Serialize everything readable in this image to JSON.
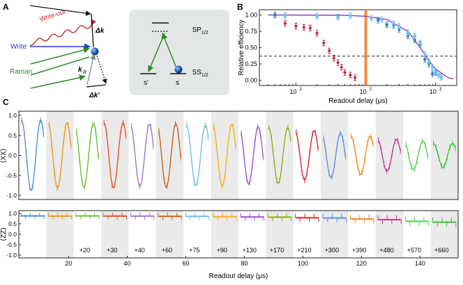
{
  "panel_labels": {
    "a": "A",
    "b": "B",
    "c": "C"
  },
  "panel_a": {
    "write_out": "Write-out",
    "write": "Write",
    "raman": "Raman",
    "delta_k": "Δk",
    "k_r": "k",
    "k_r_sub": "R",
    "delta_k_prime": "Δk'"
  },
  "level_diagram": {
    "upper_level": "5P",
    "upper_sub": "1/2",
    "lower_level": "5S",
    "lower_sub": "1/2",
    "state_s_prime": "s'",
    "state_s": "s"
  },
  "colors": {
    "dark_red": "#b5283a",
    "light_red": "#e07a80",
    "blue": "#2b7fd1",
    "light_blue": "#6cc0ea",
    "purple": "#8a3fc8",
    "orange": "#f0812a",
    "gray_band": "#eaeaea"
  },
  "chart_data": [
    {
      "panel": "B",
      "type": "scatter",
      "xscale": "log",
      "xlabel": "Readout delay (μs)",
      "ylabel": "Relative efficiency",
      "xlim": [
        3,
        2000
      ],
      "ylim": [
        -0.08,
        1.08
      ],
      "x_ticks": [
        "10",
        "10",
        "10"
      ],
      "x_tick_exponents": [
        "1",
        "2",
        "3"
      ],
      "y_ticks": [
        "0.00",
        "0.25",
        "0.50",
        "0.75",
        "1.00"
      ],
      "threshold": 0.37,
      "marker_x": 100,
      "series": [
        {
          "name": "red",
          "x": [
            5,
            7,
            10,
            13,
            16,
            20,
            25,
            30,
            35,
            40,
            45,
            50,
            60,
            70
          ],
          "y": [
            1.0,
            0.87,
            0.83,
            0.81,
            0.8,
            0.72,
            0.57,
            0.45,
            0.34,
            0.27,
            0.2,
            0.12,
            0.08,
            0.04
          ]
        },
        {
          "name": "blue",
          "x": [
            5,
            7,
            20,
            40,
            60,
            150,
            200,
            250,
            300,
            400,
            500,
            600,
            700,
            800,
            900,
            1000,
            1200
          ],
          "y": [
            1.0,
            0.99,
            0.98,
            0.97,
            0.99,
            0.92,
            0.85,
            0.84,
            0.78,
            0.68,
            0.62,
            0.55,
            0.32,
            0.25,
            0.1,
            0.12,
            0.05
          ]
        },
        {
          "name": "light blue",
          "x": [
            7,
            20,
            40,
            60,
            120,
            170,
            250,
            300,
            400,
            500,
            600,
            700,
            800,
            900,
            1000,
            1100,
            1200
          ],
          "y": [
            0.99,
            0.98,
            0.97,
            0.99,
            0.95,
            0.93,
            0.87,
            0.83,
            0.73,
            0.68,
            0.57,
            0.4,
            0.29,
            0.2,
            0.13,
            0.08,
            0.05
          ]
        },
        {
          "name": "fit (purple)",
          "x": [
            4,
            50,
            100,
            200,
            400,
            600,
            800,
            1000,
            1500,
            1800
          ],
          "y": [
            1.0,
            0.995,
            0.98,
            0.93,
            0.75,
            0.5,
            0.3,
            0.17,
            0.04,
            0.02
          ]
        }
      ]
    },
    {
      "panel": "C-top",
      "type": "line",
      "ylabel": "⟨XX⟩",
      "ylim": [
        -1.0,
        1.0
      ],
      "y_ticks": [
        "1.0",
        "0.5",
        "0.0",
        "-0.5",
        "-1.0"
      ],
      "description": "Sinusoidal oscillations of ⟨XX⟩ versus readout delay for 16 readout windows",
      "amplitudes": [
        0.88,
        0.82,
        0.8,
        0.82,
        0.78,
        0.8,
        0.76,
        0.78,
        0.72,
        0.7,
        0.62,
        0.56,
        0.48,
        0.4,
        0.36,
        0.3
      ]
    },
    {
      "panel": "C-bottom",
      "type": "line",
      "xlabel": "Readout delay (μs)",
      "ylabel": "⟨ZZ⟩",
      "ylim": [
        -1.0,
        1.0
      ],
      "y_ticks": [
        "1.0",
        "0.5",
        "0.0",
        "-0.5",
        "-1.0"
      ],
      "x_ticks": [
        "20",
        "40",
        "60",
        "80",
        "100",
        "120",
        "140"
      ],
      "window_offsets": [
        "+20",
        "+30",
        "+40",
        "+60",
        "+75",
        "+90",
        "+130",
        "+170",
        "+210",
        "+300",
        "+390",
        "+480",
        "+570",
        "+660"
      ],
      "zz_values": [
        0.88,
        0.87,
        0.88,
        0.87,
        0.87,
        0.86,
        0.86,
        0.84,
        0.83,
        0.82,
        0.79,
        0.78,
        0.73,
        0.7,
        0.62,
        0.58
      ]
    }
  ]
}
